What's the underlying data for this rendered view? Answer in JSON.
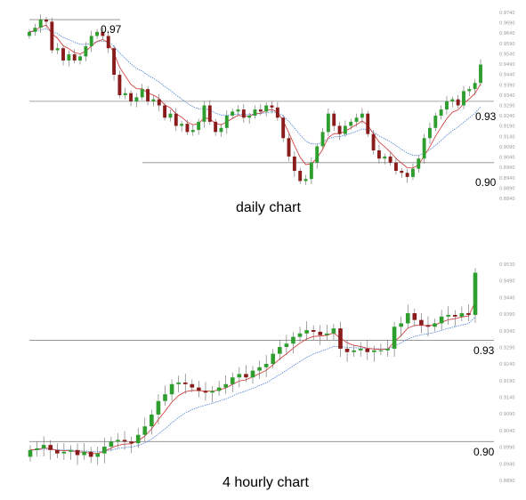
{
  "colors": {
    "up": "#2e9e2e",
    "down": "#8a1c1c",
    "ema_fast": "#d03030",
    "ema_slow": "#4a7fd6",
    "level_line": "#888888"
  },
  "chart_data": [
    {
      "type": "candlestick",
      "title": "daily chart",
      "level_labels": [
        "0.97",
        "0.93",
        "0.90"
      ],
      "levels": [
        0.97,
        0.93,
        0.9
      ],
      "ylim": [
        0.8825,
        0.9735
      ],
      "yticks": [
        "0.9740",
        "0.9690",
        "0.9640",
        "0.9590",
        "0.9540",
        "0.9490",
        "0.9440",
        "0.9390",
        "0.9340",
        "0.9290",
        "0.9240",
        "0.9190",
        "0.9140",
        "0.9090",
        "0.9040",
        "0.8990",
        "0.8940",
        "0.8890",
        "0.8840"
      ],
      "closes": [
        0.964,
        0.966,
        0.97,
        0.969,
        0.955,
        0.956,
        0.95,
        0.953,
        0.95,
        0.952,
        0.957,
        0.962,
        0.964,
        0.962,
        0.956,
        0.943,
        0.933,
        0.934,
        0.93,
        0.932,
        0.936,
        0.93,
        0.931,
        0.928,
        0.922,
        0.924,
        0.918,
        0.919,
        0.915,
        0.916,
        0.92,
        0.928,
        0.92,
        0.915,
        0.917,
        0.923,
        0.925,
        0.926,
        0.922,
        0.923,
        0.926,
        0.925,
        0.928,
        0.927,
        0.922,
        0.912,
        0.903,
        0.896,
        0.891,
        0.892,
        0.9,
        0.908,
        0.915,
        0.924,
        0.918,
        0.914,
        0.918,
        0.92,
        0.922,
        0.924,
        0.914,
        0.906,
        0.902,
        0.903,
        0.9,
        0.896,
        0.895,
        0.893,
        0.897,
        0.902,
        0.912,
        0.917,
        0.923,
        0.926,
        0.93,
        0.931,
        0.928,
        0.935,
        0.936,
        0.939,
        0.948
      ],
      "series": [
        {
          "name": ""
        },
        {
          "name": ""
        }
      ]
    },
    {
      "type": "candlestick",
      "title": "4 hourly chart",
      "level_labels": [
        "0.93",
        "0.90"
      ],
      "levels": [
        0.93,
        0.9
      ],
      "ylim": [
        0.8885,
        0.9525
      ],
      "yticks": [
        "0.9530",
        "0.9490",
        "0.9440",
        "0.9390",
        "0.9340",
        "0.9290",
        "0.9240",
        "0.9190",
        "0.9140",
        "0.9090",
        "0.9040",
        "0.8990",
        "0.8940",
        "0.8890"
      ],
      "closes": [
        0.8975,
        0.898,
        0.899,
        0.8975,
        0.8965,
        0.897,
        0.8975,
        0.896,
        0.897,
        0.8955,
        0.8965,
        0.8985,
        0.9,
        0.9005,
        0.9,
        0.8995,
        0.902,
        0.9045,
        0.908,
        0.912,
        0.914,
        0.917,
        0.9175,
        0.917,
        0.916,
        0.915,
        0.9145,
        0.915,
        0.916,
        0.917,
        0.919,
        0.92,
        0.919,
        0.921,
        0.922,
        0.923,
        0.926,
        0.928,
        0.929,
        0.931,
        0.932,
        0.933,
        0.9325,
        0.9315,
        0.932,
        0.9335,
        0.9275,
        0.9265,
        0.927,
        0.9275,
        0.9265,
        0.927,
        0.927,
        0.9275,
        0.934,
        0.935,
        0.938,
        0.936,
        0.9345,
        0.934,
        0.935,
        0.937,
        0.9375,
        0.937,
        0.938,
        0.9375,
        0.95
      ],
      "series": [
        {
          "name": ""
        },
        {
          "name": ""
        }
      ]
    }
  ]
}
